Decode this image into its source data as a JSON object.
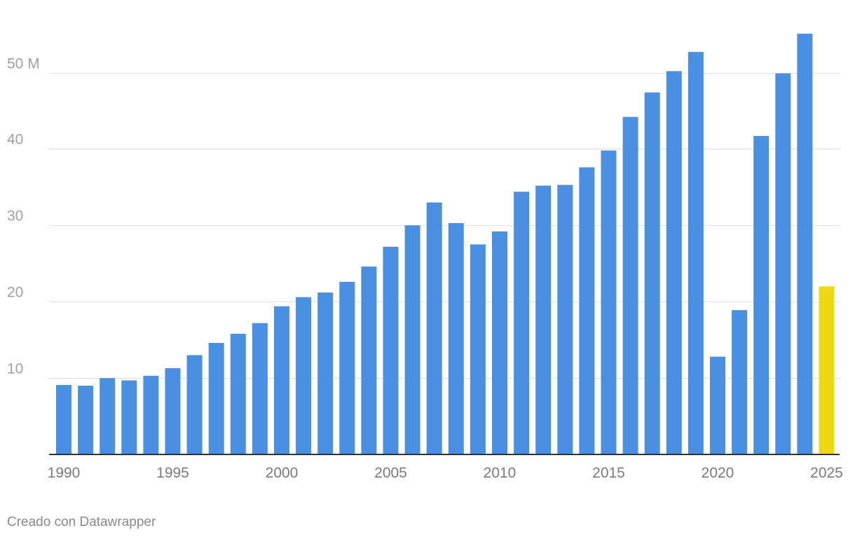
{
  "chart_data": {
    "type": "bar",
    "x": [
      1990,
      1991,
      1992,
      1993,
      1994,
      1995,
      1996,
      1997,
      1998,
      1999,
      2000,
      2001,
      2002,
      2003,
      2004,
      2005,
      2006,
      2007,
      2008,
      2009,
      2010,
      2011,
      2012,
      2013,
      2014,
      2015,
      2016,
      2017,
      2018,
      2019,
      2020,
      2021,
      2022,
      2023,
      2024,
      2025
    ],
    "values": [
      9.1,
      9.0,
      10.0,
      9.7,
      10.3,
      11.3,
      13.0,
      14.6,
      15.8,
      17.2,
      19.4,
      20.6,
      21.2,
      22.6,
      24.6,
      27.2,
      30.0,
      33.0,
      30.3,
      27.5,
      29.2,
      34.4,
      35.2,
      35.3,
      37.6,
      39.8,
      44.2,
      47.4,
      50.2,
      52.7,
      12.8,
      18.9,
      41.7,
      49.9,
      55.1,
      22.0
    ],
    "bar_colors": [
      "#4a90e2",
      "#4a90e2",
      "#4a90e2",
      "#4a90e2",
      "#4a90e2",
      "#4a90e2",
      "#4a90e2",
      "#4a90e2",
      "#4a90e2",
      "#4a90e2",
      "#4a90e2",
      "#4a90e2",
      "#4a90e2",
      "#4a90e2",
      "#4a90e2",
      "#4a90e2",
      "#4a90e2",
      "#4a90e2",
      "#4a90e2",
      "#4a90e2",
      "#4a90e2",
      "#4a90e2",
      "#4a90e2",
      "#4a90e2",
      "#4a90e2",
      "#4a90e2",
      "#4a90e2",
      "#4a90e2",
      "#4a90e2",
      "#4a90e2",
      "#4a90e2",
      "#4a90e2",
      "#4a90e2",
      "#4a90e2",
      "#4a90e2",
      "#eed814"
    ],
    "x_tick_labels": [
      "1990",
      "1995",
      "2000",
      "2005",
      "2010",
      "2015",
      "2020",
      "2025"
    ],
    "y_ticks": [
      10,
      20,
      30,
      40,
      50
    ],
    "y_tick_labels": [
      "10",
      "20",
      "30",
      "40",
      "50 M"
    ],
    "ylim": [
      0,
      55.1
    ],
    "grid": true,
    "title": "",
    "xlabel": "",
    "ylabel": ""
  },
  "footer": {
    "credit": "Creado con Datawrapper"
  }
}
